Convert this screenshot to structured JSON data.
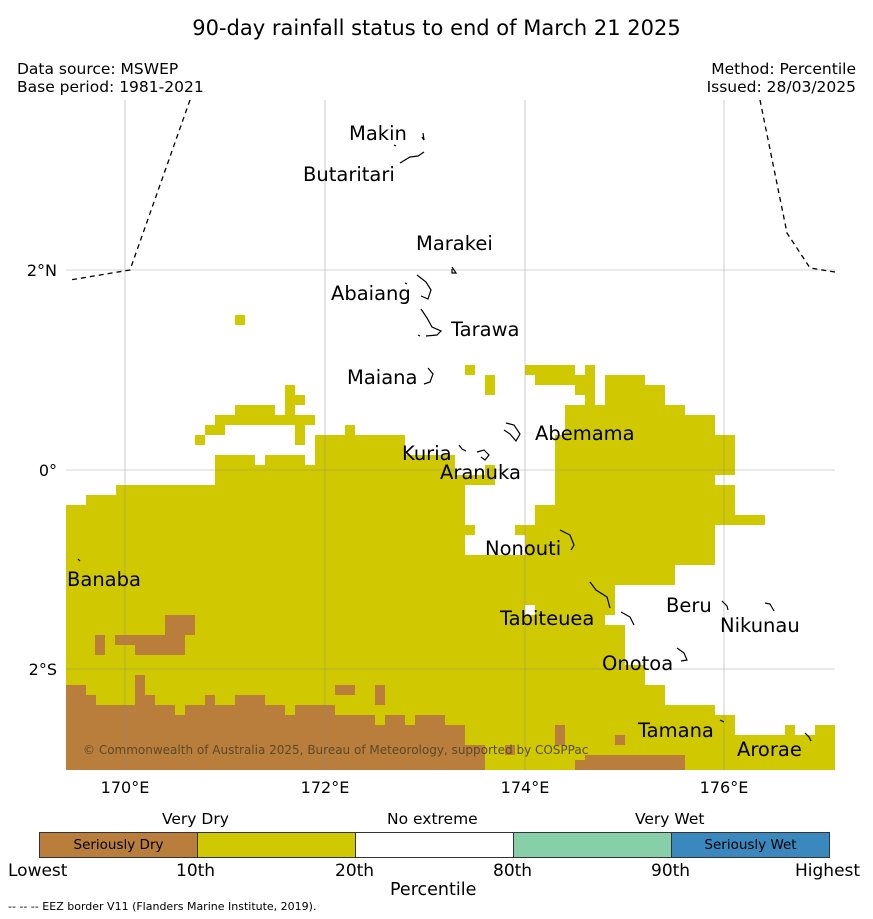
{
  "title": "90-day rainfall status to end of March 21 2025",
  "data_source": "Data source: MSWEP",
  "base_period": "Base period: 1981-2021",
  "method": "Method: Percentile",
  "issued": "Issued: 28/03/2025",
  "latitude_labels": [
    "2°N",
    "0°",
    "2°S"
  ],
  "longitude_labels": [
    "170°E",
    "172°E",
    "174°E",
    "176°E"
  ],
  "places": [
    {
      "name": "Makin"
    },
    {
      "name": "Butaritari"
    },
    {
      "name": "Marakei"
    },
    {
      "name": "Abaiang"
    },
    {
      "name": "Tarawa"
    },
    {
      "name": "Maiana"
    },
    {
      "name": "Abemama"
    },
    {
      "name": "Kuria"
    },
    {
      "name": "Aranuka"
    },
    {
      "name": "Nonouti"
    },
    {
      "name": "Banaba"
    },
    {
      "name": "Beru"
    },
    {
      "name": "Nikunau"
    },
    {
      "name": "Tabiteuea"
    },
    {
      "name": "Onotoa"
    },
    {
      "name": "Tamana"
    },
    {
      "name": "Arorae"
    }
  ],
  "copyright": "© Commonwealth of Australia 2025, Bureau of Meteorology, supported by COSPPac",
  "legend": {
    "categories": [
      {
        "label": "Seriously Dry",
        "color": "#b97e3c"
      },
      {
        "label": "",
        "color": "#d0c800"
      },
      {
        "label": "",
        "color": "#ffffff"
      },
      {
        "label": "",
        "color": "#86cfa8"
      },
      {
        "label": "Seriously Wet",
        "color": "#3a88bd"
      }
    ],
    "headers": [
      "Very Dry",
      "No extreme",
      "Very Wet"
    ],
    "ticks": [
      "Lowest",
      "10th",
      "20th",
      "80th",
      "90th",
      "Highest"
    ],
    "axis_title": "Percentile"
  },
  "eez_note": "--  --  -- EEZ border V11 (Flanders Marine Institute, 2019)."
}
